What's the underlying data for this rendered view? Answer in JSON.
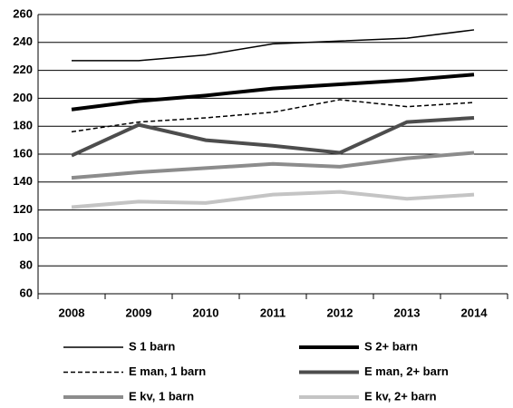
{
  "chart_data": {
    "type": "line",
    "categories": [
      "2008",
      "2009",
      "2010",
      "2011",
      "2012",
      "2013",
      "2014"
    ],
    "series": [
      {
        "name": "S 1 barn",
        "color": "#000000",
        "values": [
          227,
          227,
          231,
          239,
          241,
          243,
          249
        ]
      },
      {
        "name": "S 2+ barn",
        "color": "#000000",
        "values": [
          192,
          198,
          202,
          207,
          210,
          213,
          217
        ]
      },
      {
        "name": "E man, 1 barn",
        "color": "#000000",
        "values": [
          176,
          183,
          186,
          190,
          199,
          194,
          197
        ]
      },
      {
        "name": "E man, 2+ barn",
        "color": "#4d4d4d",
        "values": [
          159,
          181,
          170,
          166,
          161,
          183,
          186
        ]
      },
      {
        "name": "E kv, 1 barn",
        "color": "#8c8c8c",
        "values": [
          143,
          147,
          150,
          153,
          151,
          157,
          161
        ]
      },
      {
        "name": "E kv, 2+ barn",
        "color": "#c4c4c4",
        "values": [
          122,
          126,
          125,
          131,
          133,
          128,
          131
        ]
      }
    ],
    "ylim": [
      60,
      260
    ],
    "yticks": [
      60,
      80,
      100,
      120,
      140,
      160,
      180,
      200,
      220,
      240,
      260
    ],
    "grid": true,
    "legend": "bottom"
  }
}
